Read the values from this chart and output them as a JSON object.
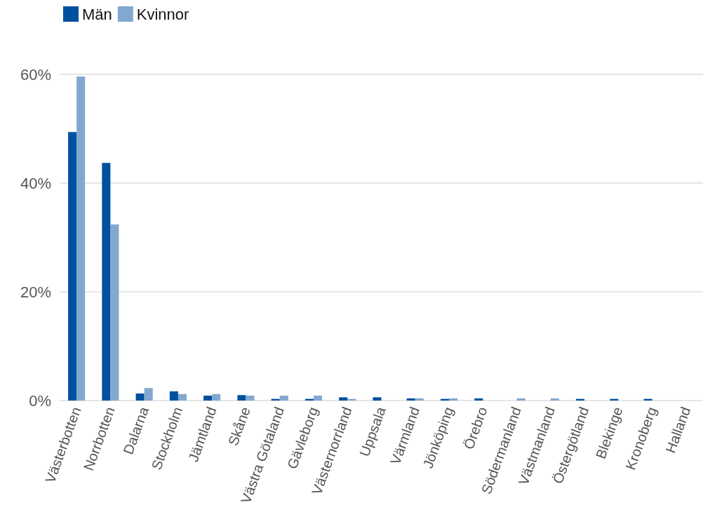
{
  "chart_data": {
    "type": "bar",
    "categories": [
      "Västerbotten",
      "Norrbotten",
      "Dalarna",
      "Stockholm",
      "Jämtland",
      "Skåne",
      "Västra Götaland",
      "Gävleborg",
      "Västernorrland",
      "Uppsala",
      "Värmland",
      "Jönköping",
      "Örebro",
      "Södermanland",
      "Västmanland",
      "Östergötland",
      "Blekinge",
      "Kronoberg",
      "Halland"
    ],
    "series": [
      {
        "name": "Män",
        "color": "#0050a0",
        "values": [
          49.4,
          43.7,
          1.3,
          1.7,
          0.9,
          1.0,
          0.3,
          0.3,
          0.6,
          0.6,
          0.4,
          0.3,
          0.4,
          0,
          0,
          0.3,
          0.3,
          0.3,
          0
        ]
      },
      {
        "name": "Kvinnor",
        "color": "#82a8d0",
        "values": [
          59.6,
          32.4,
          2.3,
          1.2,
          1.2,
          0.9,
          0.9,
          0.9,
          0.3,
          0,
          0.4,
          0.4,
          0,
          0.4,
          0.4,
          0,
          0,
          0,
          0
        ]
      }
    ],
    "ylim": [
      0,
      60
    ],
    "yticks": [
      {
        "value": 0,
        "label": "0%"
      },
      {
        "value": 20,
        "label": "20%"
      },
      {
        "value": 40,
        "label": "40%"
      },
      {
        "value": 60,
        "label": "60%"
      }
    ],
    "grid": "y",
    "legend": "top left"
  }
}
